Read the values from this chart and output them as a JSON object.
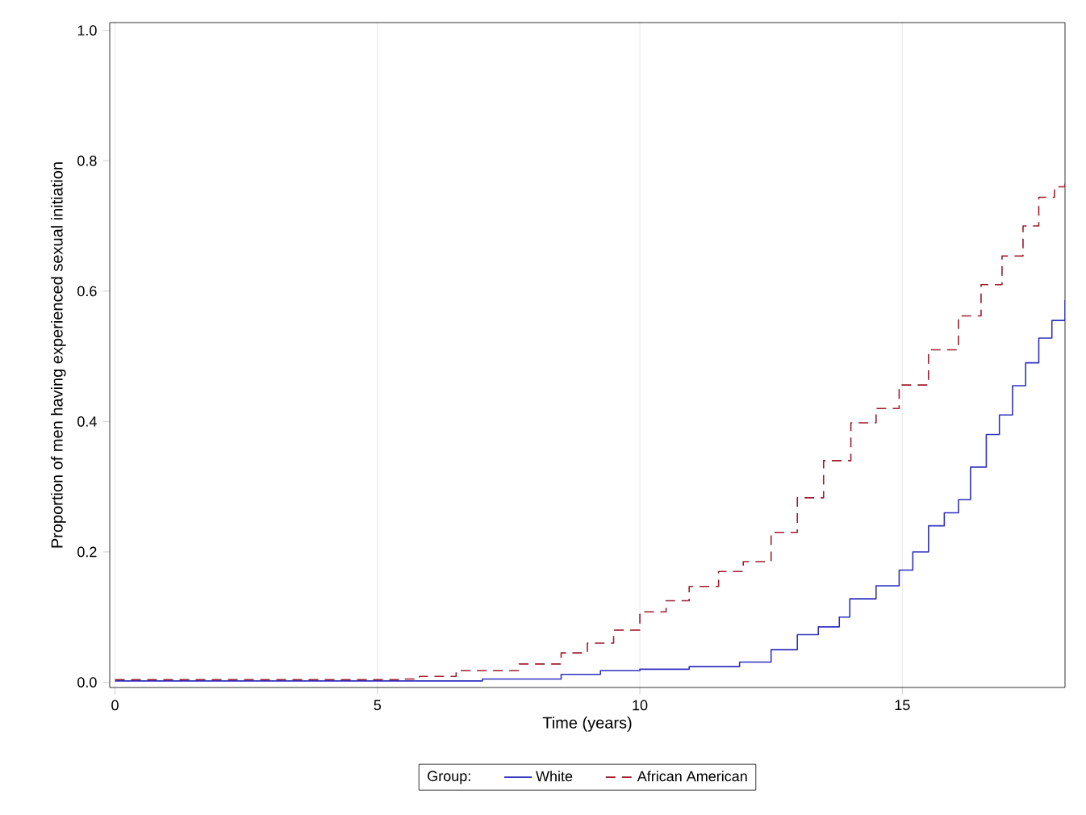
{
  "chart_data": {
    "type": "step",
    "xlabel": "Time (years)",
    "ylabel": "Proportion of men having experienced sexual initiation",
    "legend_title": "Group:",
    "xlim": [
      -0.1,
      18.1
    ],
    "ylim": [
      -0.008,
      1.012
    ],
    "xticks": [
      0,
      5,
      10,
      15
    ],
    "yticks": [
      {
        "value": 0,
        "label": "0.0"
      },
      {
        "value": 0.2,
        "label": "0.2"
      },
      {
        "value": 0.4,
        "label": "0.4"
      },
      {
        "value": 0.6,
        "label": "0.6"
      },
      {
        "value": 0.8,
        "label": "0.8"
      },
      {
        "value": 1,
        "label": "1.0"
      }
    ],
    "grid": "x",
    "legend": "bottom",
    "marker": "none",
    "series": [
      {
        "name": "White",
        "color": "#3030c0",
        "line_style": "solid",
        "x": [
          0,
          7.0,
          8.5,
          9.25,
          10.0,
          10.94,
          11.9,
          12.5,
          13.0,
          13.4,
          13.8,
          14.0,
          14.5,
          14.94,
          15.2,
          15.5,
          15.8,
          16.07,
          16.3,
          16.6,
          16.85,
          17.1,
          17.35,
          17.6,
          17.85,
          18.1
        ],
        "values": [
          0.002,
          0.005,
          0.012,
          0.018,
          0.02,
          0.024,
          0.031,
          0.05,
          0.073,
          0.085,
          0.1,
          0.128,
          0.148,
          0.172,
          0.2,
          0.24,
          0.26,
          0.28,
          0.33,
          0.38,
          0.41,
          0.455,
          0.49,
          0.528,
          0.555,
          0.586
        ]
      },
      {
        "name": "African American",
        "color": "#a01c2c",
        "line_style": "dashed",
        "x": [
          0,
          5.5,
          5.8,
          6.5,
          7.7,
          8.5,
          9.0,
          9.5,
          10.0,
          10.5,
          10.94,
          11.5,
          11.97,
          12.5,
          13.0,
          13.5,
          14.02,
          14.5,
          14.94,
          15.5,
          16.07,
          16.5,
          16.9,
          17.3,
          17.6,
          17.9,
          18.1
        ],
        "values": [
          0.004,
          0.005,
          0.009,
          0.018,
          0.028,
          0.045,
          0.06,
          0.08,
          0.108,
          0.125,
          0.147,
          0.17,
          0.185,
          0.23,
          0.283,
          0.34,
          0.398,
          0.42,
          0.456,
          0.51,
          0.562,
          0.61,
          0.654,
          0.7,
          0.744,
          0.76,
          0.766
        ]
      }
    ]
  }
}
